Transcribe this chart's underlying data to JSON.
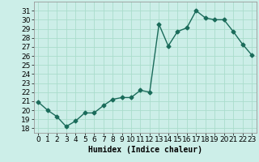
{
  "x": [
    0,
    1,
    2,
    3,
    4,
    5,
    6,
    7,
    8,
    9,
    10,
    11,
    12,
    13,
    14,
    15,
    16,
    17,
    18,
    19,
    20,
    21,
    22,
    23
  ],
  "y": [
    20.9,
    20.0,
    19.3,
    18.2,
    18.8,
    19.7,
    19.7,
    20.5,
    21.2,
    21.4,
    21.4,
    22.2,
    22.0,
    29.5,
    27.1,
    28.7,
    29.1,
    31.0,
    30.2,
    30.0,
    30.0,
    28.7,
    27.3,
    26.1
  ],
  "line_color": "#1a6b5a",
  "marker": "D",
  "marker_size": 2.5,
  "bg_color": "#cceee8",
  "grid_color": "#aaddcc",
  "xlabel": "Humidex (Indice chaleur)",
  "ylim": [
    17.5,
    32.0
  ],
  "xlim": [
    -0.5,
    23.5
  ],
  "yticks": [
    18,
    19,
    20,
    21,
    22,
    23,
    24,
    25,
    26,
    27,
    28,
    29,
    30,
    31
  ],
  "xticks": [
    0,
    1,
    2,
    3,
    4,
    5,
    6,
    7,
    8,
    9,
    10,
    11,
    12,
    13,
    14,
    15,
    16,
    17,
    18,
    19,
    20,
    21,
    22,
    23
  ],
  "xlabel_fontsize": 7,
  "tick_fontsize": 6.5,
  "line_width": 1.0
}
